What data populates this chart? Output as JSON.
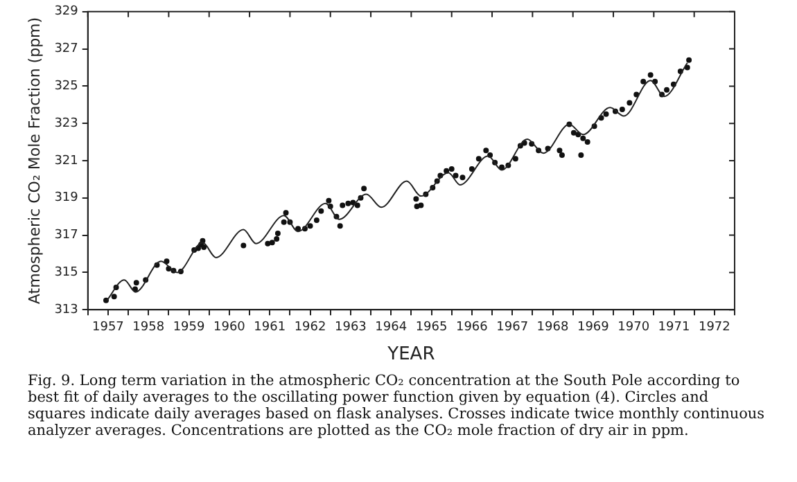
{
  "chart_data": {
    "type": "scatter",
    "xlabel": "YEAR",
    "ylabel": "Atmospheric CO₂ Mole Fraction (ppm)",
    "xlim": [
      1956.5,
      1972.5
    ],
    "xticks": [
      {
        "value": 1956.5,
        "label": null
      },
      1957,
      {
        "value": 1957.5,
        "label": null
      },
      1958,
      {
        "value": 1958.5,
        "label": null
      },
      1959,
      {
        "value": 1959.5,
        "label": null
      },
      1960,
      {
        "value": 1960.5,
        "label": null
      },
      1961,
      {
        "value": 1961.5,
        "label": null
      },
      1962,
      {
        "value": 1962.5,
        "label": null
      },
      1963,
      {
        "value": 1963.5,
        "label": null
      },
      1964,
      {
        "value": 1964.5,
        "label": null
      },
      1965,
      {
        "value": 1965.5,
        "label": null
      },
      1966,
      {
        "value": 1966.5,
        "label": null
      },
      1967,
      {
        "value": 1967.5,
        "label": null
      },
      1968,
      {
        "value": 1968.5,
        "label": null
      },
      1969,
      {
        "value": 1969.5,
        "label": null
      },
      1970,
      {
        "value": 1970.5,
        "label": null
      },
      1971,
      {
        "value": 1971.5,
        "label": null
      },
      1972,
      {
        "value": 1972.5,
        "label": null
      }
    ],
    "ylim": [
      313,
      329
    ],
    "yticks": [
      313,
      315,
      317,
      319,
      321,
      323,
      325,
      327,
      329
    ],
    "grid": false,
    "legend": false,
    "series": [
      {
        "type": "line",
        "color": "#222222",
        "marker": "none",
        "line_style": "solid",
        "x": [
          1956.97,
          1957.4,
          1957.68,
          1958.31,
          1958.71,
          1959.34,
          1959.67,
          1960.35,
          1960.66,
          1961.35,
          1961.7,
          1962.38,
          1962.72,
          1963.39,
          1963.76,
          1964.39,
          1964.74,
          1965.42,
          1965.71,
          1966.4,
          1966.74,
          1967.37,
          1967.77,
          1968.41,
          1968.75,
          1969.42,
          1969.76,
          1970.42,
          1970.76,
          1971.33
        ],
        "values": [
          313.5,
          314.6,
          313.95,
          315.6,
          315.0,
          316.6,
          315.8,
          317.3,
          316.55,
          318.05,
          317.2,
          318.7,
          317.85,
          319.2,
          318.5,
          319.9,
          319.1,
          320.35,
          319.7,
          321.25,
          320.5,
          322.15,
          321.4,
          322.95,
          322.4,
          323.85,
          323.4,
          325.3,
          324.45,
          326.25
        ]
      },
      {
        "color": "#111111",
        "marker": "circle",
        "x": [
          1956.95,
          1957.15,
          1957.2,
          1957.7,
          1957.67,
          1957.93,
          1958.21,
          1958.45,
          1958.5,
          1958.62,
          1958.8,
          1959.13,
          1959.23,
          1959.3,
          1959.34,
          1959.37,
          1960.35,
          1960.95,
          1961.06,
          1961.17,
          1961.2,
          1961.35,
          1961.4,
          1961.5,
          1961.7,
          1961.87,
          1962.0,
          1962.16,
          1962.27,
          1962.46,
          1962.5,
          1962.65,
          1962.74,
          1962.8,
          1962.94,
          1963.06,
          1963.17,
          1963.25,
          1963.33,
          1964.62,
          1964.64,
          1964.74,
          1964.86,
          1965.03,
          1965.14,
          1965.22,
          1965.37,
          1965.5,
          1965.6,
          1965.77,
          1966.0,
          1966.17,
          1966.35,
          1966.45,
          1966.57,
          1966.74,
          1966.9,
          1967.08,
          1967.2,
          1967.3,
          1967.48,
          1967.65,
          1967.88,
          1968.17,
          1968.23,
          1968.41,
          1968.52,
          1968.63,
          1968.75,
          1968.7,
          1968.86,
          1969.03,
          1969.2,
          1969.32,
          1969.55,
          1969.72,
          1969.9,
          1970.07,
          1970.24,
          1970.42,
          1970.53,
          1970.7,
          1970.82,
          1970.99,
          1971.16,
          1971.37,
          1971.33
        ],
        "values": [
          313.5,
          313.7,
          314.2,
          314.45,
          314.1,
          314.6,
          315.4,
          315.6,
          315.2,
          315.1,
          315.05,
          316.2,
          316.3,
          316.5,
          316.7,
          316.35,
          316.45,
          316.55,
          316.6,
          316.8,
          317.1,
          317.7,
          318.2,
          317.7,
          317.35,
          317.35,
          317.5,
          317.8,
          318.3,
          318.85,
          318.55,
          318.0,
          317.5,
          318.6,
          318.7,
          318.75,
          318.6,
          319.0,
          319.5,
          318.95,
          318.55,
          318.6,
          319.2,
          319.55,
          319.9,
          320.2,
          320.45,
          320.55,
          320.2,
          320.1,
          320.55,
          321.1,
          321.55,
          321.3,
          320.9,
          320.65,
          320.75,
          321.1,
          321.8,
          321.95,
          321.9,
          321.55,
          321.65,
          321.55,
          321.3,
          322.95,
          322.5,
          322.4,
          322.2,
          321.3,
          322.0,
          322.85,
          323.3,
          323.5,
          323.65,
          323.75,
          324.1,
          324.55,
          325.25,
          325.6,
          325.25,
          324.55,
          324.8,
          325.1,
          325.8,
          326.4,
          326.0
        ]
      }
    ],
    "annotations": [
      "Fig. 9. Long term variation in the atmospheric CO₂ concentration at the South Pole according to best fit of daily averages to the oscillating power function given by equation (4). Circles and squares indicate daily averages based on flask analyses. Crosses indicate twice monthly continuous analyzer averages. Concentrations are plotted as the CO₂ mole fraction of dry air in ppm."
    ]
  }
}
